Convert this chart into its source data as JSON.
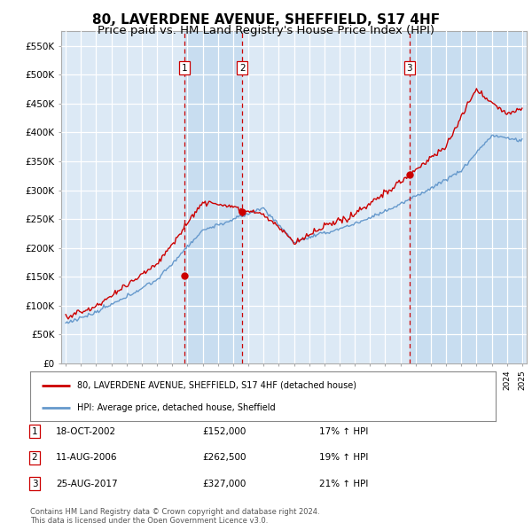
{
  "title": "80, LAVERDENE AVENUE, SHEFFIELD, S17 4HF",
  "subtitle": "Price paid vs. HM Land Registry's House Price Index (HPI)",
  "ylim": [
    0,
    575000
  ],
  "yticks": [
    0,
    50000,
    100000,
    150000,
    200000,
    250000,
    300000,
    350000,
    400000,
    450000,
    500000,
    550000
  ],
  "ytick_labels": [
    "£0",
    "£50K",
    "£100K",
    "£150K",
    "£200K",
    "£250K",
    "£300K",
    "£350K",
    "£400K",
    "£450K",
    "£500K",
    "£550K"
  ],
  "background_color": "#ffffff",
  "plot_bg_color": "#dce9f5",
  "grid_color": "#ffffff",
  "shade_color": "#c8ddf0",
  "purchase_vline_color": "#cc0000",
  "legend_entries": [
    {
      "label": "80, LAVERDENE AVENUE, SHEFFIELD, S17 4HF (detached house)",
      "color": "#cc0000"
    },
    {
      "label": "HPI: Average price, detached house, Sheffield",
      "color": "#6699cc"
    }
  ],
  "table_rows": [
    {
      "num": "1",
      "date": "18-OCT-2002",
      "price": "£152,000",
      "hpi": "17% ↑ HPI"
    },
    {
      "num": "2",
      "date": "11-AUG-2006",
      "price": "£262,500",
      "hpi": "19% ↑ HPI"
    },
    {
      "num": "3",
      "date": "25-AUG-2017",
      "price": "£327,000",
      "hpi": "21% ↑ HPI"
    }
  ],
  "footer": [
    "Contains HM Land Registry data © Crown copyright and database right 2024.",
    "This data is licensed under the Open Government Licence v3.0."
  ],
  "x_start_year": 1995,
  "x_end_year": 2025,
  "hpi_line_color": "#6699cc",
  "price_line_color": "#cc0000",
  "purchase_years": [
    2002.8,
    2006.6,
    2017.6
  ],
  "purchase_prices": [
    152000,
    262500,
    327000
  ],
  "title_fontsize": 11,
  "subtitle_fontsize": 9.5
}
